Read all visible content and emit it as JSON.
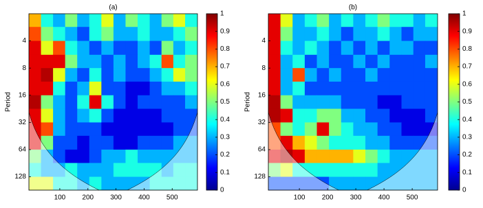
{
  "chart_data": [
    {
      "type": "heatmap",
      "title": "(a)",
      "y_label": "Period",
      "xlim": [
        -10,
        590
      ],
      "xticks": [
        100,
        200,
        300,
        400,
        500
      ],
      "ylim": [
        2,
        180
      ],
      "yticks": [
        4,
        8,
        16,
        32,
        64,
        128
      ],
      "log_y": true,
      "clim": [
        0,
        1
      ],
      "cticks": [
        0,
        0.1,
        0.2,
        0.3,
        0.4,
        0.5,
        0.6,
        0.7,
        0.8,
        0.9,
        1
      ],
      "x_bins": [
        -10,
        33,
        76,
        119,
        162,
        205,
        248,
        291,
        334,
        377,
        420,
        462,
        504,
        546,
        590
      ],
      "y_bins": [
        2,
        2.8,
        4,
        5.7,
        8,
        11.3,
        16,
        22.6,
        32,
        45,
        64,
        90,
        128,
        180
      ],
      "z": [
        [
          0.7,
          0.4,
          0.3,
          0.5,
          0.3,
          0.4,
          0.6,
          0.3,
          0.5,
          0.4,
          0.3,
          0.5,
          0.6,
          0.4
        ],
        [
          0.8,
          0.5,
          0.4,
          0.3,
          0.2,
          0.4,
          0.5,
          0.3,
          0.3,
          0.4,
          0.3,
          0.3,
          0.4,
          0.5
        ],
        [
          0.9,
          0.6,
          0.8,
          0.4,
          0.3,
          0.2,
          0.3,
          0.2,
          0.2,
          0.3,
          0.2,
          0.5,
          0.3,
          0.4
        ],
        [
          0.9,
          0.9,
          0.9,
          0.5,
          0.3,
          0.3,
          0.2,
          0.3,
          0.2,
          0.3,
          0.4,
          0.8,
          0.4,
          0.5
        ],
        [
          0.9,
          0.95,
          0.6,
          0.3,
          0.2,
          0.4,
          0.2,
          0.3,
          0.2,
          0.2,
          0.3,
          0.4,
          0.6,
          0.5
        ],
        [
          0.9,
          0.9,
          0.4,
          0.2,
          0.3,
          0.6,
          0.2,
          0.2,
          0.1,
          0.1,
          0.2,
          0.3,
          0.3,
          0.4
        ],
        [
          0.95,
          0.5,
          0.3,
          0.2,
          0.4,
          0.9,
          0.4,
          0.2,
          0.1,
          0.2,
          0.2,
          0.2,
          0.2,
          0.3
        ],
        [
          0.9,
          0.6,
          0.3,
          0.2,
          0.3,
          0.4,
          0.2,
          0.1,
          0.1,
          0.1,
          0.1,
          0.2,
          0.2,
          0.2
        ],
        [
          0.9,
          0.8,
          0.3,
          0.2,
          0.2,
          0.2,
          0.1,
          0.1,
          0.1,
          0.1,
          0.1,
          0.1,
          0.2,
          0.2
        ],
        [
          0.9,
          0.5,
          0.2,
          0.2,
          0.1,
          0.2,
          0.2,
          0.1,
          0.1,
          0.2,
          0.2,
          0.2,
          0.3,
          0.3
        ],
        [
          0.5,
          0.3,
          0.2,
          0.1,
          0.1,
          0.2,
          0.3,
          0.3,
          0.4,
          0.3,
          0.3,
          0.3,
          0.3,
          0.3
        ],
        [
          0.4,
          0.3,
          0.3,
          0.4,
          0.3,
          0.3,
          0.3,
          0.4,
          0.4,
          0.4,
          0.4,
          0.3,
          0.4,
          0.4
        ],
        [
          0.6,
          0.6,
          0.4,
          0.4,
          0.3,
          0.4,
          0.3,
          0.3,
          0.3,
          0.3,
          0.4,
          0.4,
          0.4,
          0.4
        ]
      ]
    },
    {
      "type": "heatmap",
      "title": "(b)",
      "y_label": "Period",
      "xlim": [
        -10,
        590
      ],
      "xticks": [
        100,
        200,
        300,
        400,
        500
      ],
      "ylim": [
        2,
        180
      ],
      "yticks": [
        4,
        8,
        16,
        32,
        64,
        128
      ],
      "log_y": true,
      "clim": [
        0,
        1
      ],
      "cticks": [
        0,
        0.1,
        0.2,
        0.3,
        0.4,
        0.5,
        0.6,
        0.7,
        0.8,
        0.9,
        1
      ],
      "x_bins": [
        -10,
        33,
        76,
        119,
        162,
        205,
        248,
        291,
        334,
        377,
        420,
        462,
        504,
        546,
        590
      ],
      "y_bins": [
        2,
        2.8,
        4,
        5.7,
        8,
        11.3,
        16,
        22.6,
        32,
        45,
        64,
        90,
        128,
        180
      ],
      "z": [
        [
          0.9,
          0.6,
          0.3,
          0.4,
          0.5,
          0.3,
          0.4,
          0.3,
          0.4,
          0.5,
          0.4,
          0.4,
          0.3,
          0.4
        ],
        [
          0.9,
          0.5,
          0.3,
          0.3,
          0.4,
          0.3,
          0.2,
          0.3,
          0.3,
          0.4,
          0.3,
          0.2,
          0.3,
          0.3
        ],
        [
          0.9,
          0.4,
          0.3,
          0.4,
          0.3,
          0.2,
          0.3,
          0.2,
          0.3,
          0.2,
          0.3,
          0.3,
          0.2,
          0.2
        ],
        [
          0.9,
          0.3,
          0.4,
          0.2,
          0.3,
          0.2,
          0.2,
          0.3,
          0.2,
          0.3,
          0.2,
          0.2,
          0.2,
          0.3
        ],
        [
          0.9,
          0.3,
          0.8,
          0.3,
          0.2,
          0.3,
          0.2,
          0.2,
          0.3,
          0.2,
          0.2,
          0.2,
          0.2,
          0.2
        ],
        [
          0.9,
          0.3,
          0.4,
          0.2,
          0.2,
          0.2,
          0.2,
          0.2,
          0.2,
          0.2,
          0.2,
          0.2,
          0.2,
          0.2
        ],
        [
          0.95,
          0.5,
          0.3,
          0.3,
          0.3,
          0.3,
          0.2,
          0.2,
          0.2,
          0.1,
          0.1,
          0.2,
          0.2,
          0.2
        ],
        [
          0.95,
          0.9,
          0.4,
          0.4,
          0.5,
          0.5,
          0.3,
          0.3,
          0.2,
          0.2,
          0.1,
          0.1,
          0.1,
          0.2
        ],
        [
          0.8,
          0.5,
          0.4,
          0.5,
          0.9,
          0.5,
          0.4,
          0.3,
          0.3,
          0.2,
          0.2,
          0.1,
          0.1,
          0.1
        ],
        [
          0.8,
          0.9,
          0.7,
          0.6,
          0.5,
          0.4,
          0.4,
          0.4,
          0.3,
          0.3,
          0.2,
          0.2,
          0.2,
          0.2
        ],
        [
          0.9,
          0.95,
          0.9,
          0.7,
          0.7,
          0.7,
          0.7,
          0.6,
          0.5,
          0.4,
          0.3,
          0.3,
          0.3,
          0.3
        ],
        [
          0.5,
          0.6,
          0.4,
          0.4,
          0.4,
          0.4,
          0.4,
          0.4,
          0.4,
          0.3,
          0.3,
          0.3,
          0.3,
          0.3
        ],
        [
          0.2,
          0.2,
          0.2,
          0.2,
          0.2,
          0.3,
          0.3,
          0.3,
          0.3,
          0.3,
          0.3,
          0.3,
          0.3,
          0.3
        ]
      ]
    }
  ]
}
